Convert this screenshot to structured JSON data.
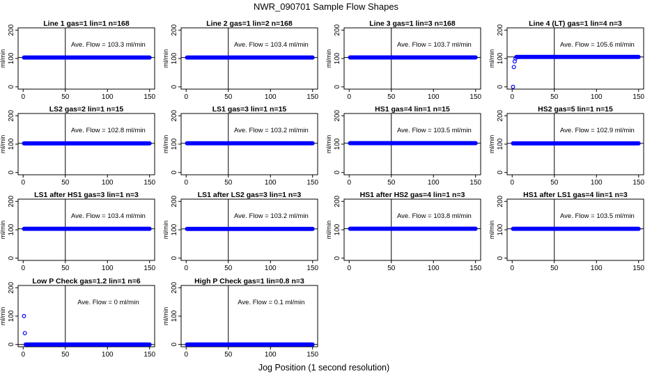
{
  "figure": {
    "title": "NWR_090701  Sample Flow Shapes",
    "xlabel": "Jog Position (1 second resolution)",
    "ylabel": "ml/min",
    "point_color": "#0000ff"
  },
  "chart_data": [
    {
      "type": "scatter",
      "title": "Line 1 gas=1 lin=1 n=168",
      "annotation": "Ave. Flow =  103.3  ml/min",
      "xlim": [
        0,
        150
      ],
      "ylim": [
        0,
        200
      ],
      "x_ticks": [
        0,
        50,
        100,
        150
      ],
      "y_ticks": [
        0,
        100,
        200
      ],
      "vline": 50,
      "hline": 103.3,
      "x": [
        1,
        150
      ],
      "y": [
        103.3,
        103.3
      ],
      "early_points": []
    },
    {
      "type": "scatter",
      "title": "Line 2 gas=1 lin=2 n=168",
      "annotation": "Ave. Flow =  103.4  ml/min",
      "xlim": [
        0,
        150
      ],
      "ylim": [
        0,
        200
      ],
      "x_ticks": [
        0,
        50,
        100,
        150
      ],
      "y_ticks": [
        0,
        100,
        200
      ],
      "vline": 50,
      "hline": 103.4,
      "x": [
        1,
        150
      ],
      "y": [
        103.4,
        103.4
      ],
      "early_points": []
    },
    {
      "type": "scatter",
      "title": "Line 3 gas=1 lin=3 n=168",
      "annotation": "Ave. Flow =  103.7  ml/min",
      "xlim": [
        0,
        150
      ],
      "ylim": [
        0,
        200
      ],
      "x_ticks": [
        0,
        50,
        100,
        150
      ],
      "y_ticks": [
        0,
        100,
        200
      ],
      "vline": 50,
      "hline": 103.7,
      "x": [
        1,
        150
      ],
      "y": [
        103.7,
        103.7
      ],
      "early_points": []
    },
    {
      "type": "scatter",
      "title": "Line 4 (LT) gas=1 lin=4 n=3",
      "annotation": "Ave. Flow =  105.6  ml/min",
      "xlim": [
        0,
        150
      ],
      "ylim": [
        0,
        200
      ],
      "x_ticks": [
        0,
        50,
        100,
        150
      ],
      "y_ticks": [
        0,
        100,
        200
      ],
      "vline": 50,
      "hline": 105.6,
      "x": [
        5,
        150
      ],
      "y": [
        105.6,
        105.6
      ],
      "early_points": [
        {
          "x": 1,
          "y": 0
        },
        {
          "x": 2,
          "y": 70
        },
        {
          "x": 3,
          "y": 90
        },
        {
          "x": 4,
          "y": 100
        }
      ]
    },
    {
      "type": "scatter",
      "title": "LS2 gas=2 lin=1 n=15",
      "annotation": "Ave. Flow =  102.8  ml/min",
      "xlim": [
        0,
        150
      ],
      "ylim": [
        0,
        200
      ],
      "x_ticks": [
        0,
        50,
        100,
        150
      ],
      "y_ticks": [
        0,
        100,
        200
      ],
      "vline": 50,
      "hline": 102.8,
      "x": [
        1,
        150
      ],
      "y": [
        102.8,
        102.8
      ],
      "early_points": []
    },
    {
      "type": "scatter",
      "title": "LS1 gas=3 lin=1 n=15",
      "annotation": "Ave. Flow =  103.2  ml/min",
      "xlim": [
        0,
        150
      ],
      "ylim": [
        0,
        200
      ],
      "x_ticks": [
        0,
        50,
        100,
        150
      ],
      "y_ticks": [
        0,
        100,
        200
      ],
      "vline": 50,
      "hline": 103.2,
      "x": [
        1,
        150
      ],
      "y": [
        103.2,
        103.2
      ],
      "early_points": []
    },
    {
      "type": "scatter",
      "title": "HS1 gas=4 lin=1 n=15",
      "annotation": "Ave. Flow =  103.5  ml/min",
      "xlim": [
        0,
        150
      ],
      "ylim": [
        0,
        200
      ],
      "x_ticks": [
        0,
        50,
        100,
        150
      ],
      "y_ticks": [
        0,
        100,
        200
      ],
      "vline": 50,
      "hline": 103.5,
      "x": [
        1,
        150
      ],
      "y": [
        103.5,
        103.5
      ],
      "early_points": []
    },
    {
      "type": "scatter",
      "title": "HS2 gas=5 lin=1 n=15",
      "annotation": "Ave. Flow =  102.9  ml/min",
      "xlim": [
        0,
        150
      ],
      "ylim": [
        0,
        200
      ],
      "x_ticks": [
        0,
        50,
        100,
        150
      ],
      "y_ticks": [
        0,
        100,
        200
      ],
      "vline": 50,
      "hline": 102.9,
      "x": [
        1,
        150
      ],
      "y": [
        102.9,
        102.9
      ],
      "early_points": []
    },
    {
      "type": "scatter",
      "title": "LS1 after HS1 gas=3 lin=1 n=3",
      "annotation": "Ave. Flow =  103.4  ml/min",
      "xlim": [
        0,
        150
      ],
      "ylim": [
        0,
        200
      ],
      "x_ticks": [
        0,
        50,
        100,
        150
      ],
      "y_ticks": [
        0,
        100,
        200
      ],
      "vline": 50,
      "hline": 103.4,
      "x": [
        1,
        150
      ],
      "y": [
        103.4,
        103.4
      ],
      "early_points": []
    },
    {
      "type": "scatter",
      "title": "LS1 after LS2 gas=3 lin=1 n=3",
      "annotation": "Ave. Flow =  103.2  ml/min",
      "xlim": [
        0,
        150
      ],
      "ylim": [
        0,
        200
      ],
      "x_ticks": [
        0,
        50,
        100,
        150
      ],
      "y_ticks": [
        0,
        100,
        200
      ],
      "vline": 50,
      "hline": 103.2,
      "x": [
        1,
        150
      ],
      "y": [
        103.2,
        103.2
      ],
      "early_points": []
    },
    {
      "type": "scatter",
      "title": "HS1 after HS2 gas=4 lin=1 n=3",
      "annotation": "Ave. Flow =  103.8  ml/min",
      "xlim": [
        0,
        150
      ],
      "ylim": [
        0,
        200
      ],
      "x_ticks": [
        0,
        50,
        100,
        150
      ],
      "y_ticks": [
        0,
        100,
        200
      ],
      "vline": 50,
      "hline": 103.8,
      "x": [
        1,
        150
      ],
      "y": [
        103.8,
        103.8
      ],
      "early_points": []
    },
    {
      "type": "scatter",
      "title": "HS1 after LS1 gas=4 lin=1 n=3",
      "annotation": "Ave. Flow =  103.5  ml/min",
      "xlim": [
        0,
        150
      ],
      "ylim": [
        0,
        200
      ],
      "x_ticks": [
        0,
        50,
        100,
        150
      ],
      "y_ticks": [
        0,
        100,
        200
      ],
      "vline": 50,
      "hline": 103.5,
      "x": [
        1,
        150
      ],
      "y": [
        103.5,
        103.5
      ],
      "early_points": []
    },
    {
      "type": "scatter",
      "title": "Low P Check gas=1.2 lin=1 n=6",
      "annotation": "Ave. Flow =  0  ml/min",
      "xlim": [
        0,
        150
      ],
      "ylim": [
        0,
        200
      ],
      "x_ticks": [
        0,
        50,
        100,
        150
      ],
      "y_ticks": [
        0,
        100,
        200
      ],
      "vline": 50,
      "hline": 0,
      "x": [
        3,
        150
      ],
      "y": [
        0,
        0
      ],
      "early_points": [
        {
          "x": 1,
          "y": 100
        },
        {
          "x": 2,
          "y": 40
        }
      ]
    },
    {
      "type": "scatter",
      "title": "High P Check gas=1 lin=0.8 n=3",
      "annotation": "Ave. Flow =  0.1  ml/min",
      "xlim": [
        0,
        150
      ],
      "ylim": [
        0,
        200
      ],
      "x_ticks": [
        0,
        50,
        100,
        150
      ],
      "y_ticks": [
        0,
        100,
        200
      ],
      "vline": 50,
      "hline": 0.1,
      "x": [
        1,
        150
      ],
      "y": [
        0.1,
        0.1
      ],
      "early_points": []
    }
  ]
}
